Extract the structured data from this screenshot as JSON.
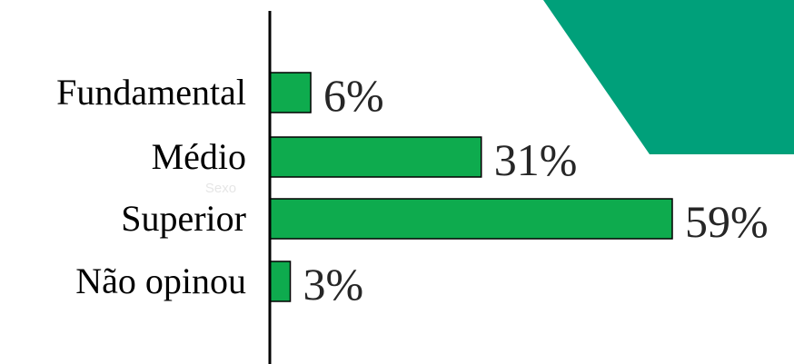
{
  "theme": {
    "bar_color": "#0EAB4E",
    "bar_stroke": "#000000",
    "accent_shape_color": "#00A07A",
    "axis_color": "#000000",
    "value_text_color": "#262626",
    "ghost_text_color": "#E6E6E6"
  },
  "decoration": {
    "accent_shape": "green-trapezoid"
  },
  "overlay_text": "Sexo",
  "chart_data": {
    "type": "bar",
    "orientation": "horizontal",
    "categories": [
      "Fundamental",
      "Médio",
      "Superior",
      "Não opinou"
    ],
    "values": [
      6,
      31,
      59,
      3
    ],
    "value_labels": [
      "6%",
      "31%",
      "59%",
      "3%"
    ],
    "unit": "%",
    "xlim": [
      0,
      60
    ],
    "grid": false,
    "legend": "none"
  }
}
